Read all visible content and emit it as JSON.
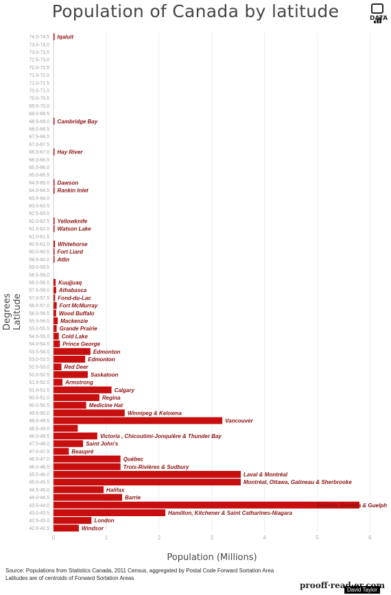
{
  "logo_text": "DATA",
  "source_lines": [
    "Source: Populations from Statistics Canada, 2011 Census, aggregated by Postal Code Forward Sortation Area",
    "Latitudes are of centroids of Forward Sortation Areas"
  ],
  "brand": "prooff·read·er.com",
  "credit": "David Taylor",
  "chart_data": {
    "type": "bar",
    "orientation": "horizontal",
    "title": "Population of Canada by latitude",
    "xlabel": "Population (Millions)",
    "ylabel": "Degrees Latitude",
    "xlim": [
      0,
      6
    ],
    "xticks": [
      0,
      1,
      2,
      3,
      4,
      5,
      6
    ],
    "grid": true,
    "bar_color": "#c70f0f",
    "categories": [
      "74.0-74.5",
      "73.5-74.0",
      "73.0-73.5",
      "72.5-73.0",
      "72.0-72.5",
      "71.5-72.0",
      "71.0-71.5",
      "70.5-71.0",
      "70.0-70.5",
      "69.5-70.0",
      "69.0-69.5",
      "68.5-69.0",
      "68.0-68.5",
      "67.5-68.0",
      "67.0-67.5",
      "66.5-67.0",
      "66.0-66.5",
      "65.5-66.0",
      "65.0-65.5",
      "64.5-65.0",
      "64.0-64.5",
      "63.5-64.0",
      "63.0-63.5",
      "62.5-63.0",
      "62.0-62.5",
      "61.5-62.0",
      "61.0-61.5",
      "60.5-61.0",
      "60.0-60.5",
      "59.5-60.0",
      "59.0-59.5",
      "58.5-59.0",
      "58.0-58.5",
      "57.5-58.0",
      "57.0-57.5",
      "56.5-57.0",
      "56.0-56.5",
      "55.5-56.0",
      "55.0-55.5",
      "54.5-55.0",
      "54.0-54.5",
      "53.5-54.0",
      "53.0-53.5",
      "52.5-53.0",
      "52.0-52.5",
      "51.5-52.0",
      "51.0-51.5",
      "50.5-51.0",
      "50.0-50.5",
      "49.5-50.0",
      "49.0-49.5",
      "48.5-49.0",
      "48.0-48.5",
      "47.5-48.0",
      "47.0-47.5",
      "46.5-47.0",
      "46.0-46.5",
      "45.5-46.0",
      "45.0-45.5",
      "44.5-45.0",
      "44.0-44.5",
      "43.5-44.0",
      "43.0-43.5",
      "42.5-43.0",
      "42.0-42.5"
    ],
    "values": [
      0.007,
      0,
      0,
      0,
      0,
      0,
      0,
      0,
      0,
      0,
      0,
      0.004,
      0,
      0,
      0,
      0.01,
      0,
      0,
      0,
      0.002,
      0.003,
      0,
      0,
      0,
      0.02,
      0.002,
      0,
      0.027,
      0.002,
      0.002,
      0,
      0,
      0.04,
      0.05,
      0.03,
      0.06,
      0.05,
      0.08,
      0.06,
      0.1,
      0.12,
      0.7,
      0.6,
      0.15,
      0.65,
      0.17,
      1.1,
      0.87,
      0.62,
      1.35,
      3.2,
      0.46,
      0.83,
      0.56,
      0.29,
      1.27,
      1.27,
      3.55,
      3.55,
      0.95,
      1.3,
      5.8,
      2.12,
      0.72,
      0.48
    ],
    "bar_labels": {
      "74.0-74.5": "Iqaluit",
      "68.5-69.0": "Cambridge Bay",
      "66.5-67.0": "Hay River",
      "64.5-65.0": "Dawson",
      "64.0-64.5": "Rankin Inlet",
      "62.0-62.5": "Yellowknife",
      "61.5-62.0": "Watson Lake",
      "60.5-61.0": "Whitehorse",
      "60.0-60.5": "Fort Liard",
      "59.5-60.0": "Atlin",
      "58.0-58.5": "Kuujjuaq",
      "57.5-58.0": "Athabasca",
      "57.0-57.5": "Fond-du-Lac",
      "56.5-57.0": "Fort McMurray",
      "56.0-56.5": "Wood Buffalo",
      "55.5-56.0": "Mackenzie",
      "55.0-55.5": "Grande Prairie",
      "54.5-55.0": "Cold Lake",
      "54.0-54.5": "Prince George",
      "53.5-54.0": "Edmonton",
      "53.0-53.5": "Edmonton",
      "52.5-53.0": "Red Deer",
      "52.0-52.5": "Saskatoon",
      "51.5-52.0": "Armstrong",
      "51.0-51.5": "Calgary",
      "50.5-51.0": "Regina",
      "50.0-50.5": "Medicine Hat",
      "49.5-50.0": "Winnipeg & Kelowna",
      "49.0-49.5": "Vancouver",
      "48.0-48.5": "Victoria , Chicoutimi-Jonquière & Thunder Bay",
      "47.5-48.0": "Saint John's",
      "47.0-47.5": "Beaupré",
      "46.5-47.0": "Québec",
      "46.0-46.5": "Trois-Rivières & Sudbury",
      "45.5-46.0": "Laval & Montréal",
      "45.0-45.5": "Montréal, Ottawa, Gatineau & Sherbrooke",
      "44.5-45.0": "Halifax",
      "44.0-44.5": "Barrie",
      "43.5-44.0": "Toronto, Oshawa & Guelph",
      "43.0-43.5": "Hamilton, Kitchener & Saint Catharines-Niagara",
      "42.5-43.0": "London",
      "42.0-42.5": "Windsor"
    }
  }
}
